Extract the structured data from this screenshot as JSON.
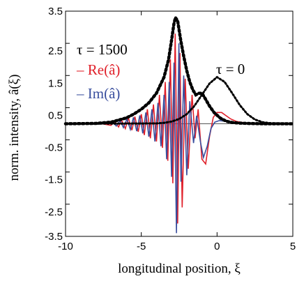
{
  "chart_data": {
    "type": "line",
    "xlabel": "longitudinal position, ξ",
    "ylabel": "norm. intensity, â(ξ)",
    "xlim": [
      -10,
      5
    ],
    "ylim": [
      -3.5,
      3.5
    ],
    "x_ticks": [
      "-10",
      "-5",
      "0",
      "5"
    ],
    "y_ticks": [
      "3.5",
      "2.5",
      "1.5",
      "0.5",
      "-0.5",
      "-1.5",
      "-2.5",
      "-3.5"
    ],
    "grid": false,
    "annotations": {
      "tau_late": "τ = 1500",
      "tau_zero": "τ = 0",
      "legend_re": "– Re(â)",
      "legend_im": "– Im(â)"
    },
    "series": [
      {
        "name": "Re(â)",
        "color": "#e0202a",
        "style": "solid",
        "x": [
          -10,
          -7.6,
          -7.0,
          -6.75,
          -6.5,
          -6.3,
          -6.05,
          -5.85,
          -5.62,
          -5.42,
          -5.2,
          -5.0,
          -4.8,
          -4.6,
          -4.4,
          -4.2,
          -4.0,
          -3.8,
          -3.6,
          -3.42,
          -3.25,
          -3.08,
          -2.92,
          -2.76,
          -2.6,
          -2.45,
          -2.3,
          -2.1,
          -1.9,
          -1.65,
          -1.45,
          -1.25,
          -1.0,
          -0.75,
          -0.5,
          -0.25,
          0.0,
          0.3,
          0.6,
          0.9,
          1.3,
          1.8,
          2.5,
          3.5,
          5
        ],
        "y": [
          0,
          0,
          -0.05,
          0.07,
          -0.1,
          0.12,
          -0.15,
          0.18,
          -0.2,
          0.22,
          -0.25,
          0.3,
          -0.35,
          0.45,
          -0.45,
          0.6,
          -0.55,
          0.9,
          -0.75,
          1.3,
          -1.15,
          2.0,
          -1.85,
          2.8,
          -3.1,
          2.2,
          -2.6,
          1.4,
          -1.4,
          0.9,
          -0.45,
          0.45,
          -1.1,
          -1.25,
          -0.4,
          0.2,
          0.35,
          0.35,
          0.25,
          0.15,
          0.07,
          0.03,
          0.01,
          0,
          0
        ]
      },
      {
        "name": "Im(â)",
        "color": "#3a4f9e",
        "style": "solid",
        "x": [
          -10,
          -7.6,
          -6.9,
          -6.65,
          -6.4,
          -6.18,
          -5.95,
          -5.72,
          -5.52,
          -5.3,
          -5.1,
          -4.9,
          -4.7,
          -4.5,
          -4.3,
          -4.1,
          -3.9,
          -3.7,
          -3.5,
          -3.33,
          -3.16,
          -3.0,
          -2.84,
          -2.68,
          -2.52,
          -2.38,
          -2.2,
          -2.0,
          -1.8,
          -1.55,
          -1.35,
          -1.1,
          -0.9,
          -0.65,
          -0.4,
          -0.15,
          0.15,
          0.5,
          0.9,
          1.4,
          2.0,
          3.0,
          5
        ],
        "y": [
          0,
          0,
          0.05,
          -0.07,
          0.1,
          -0.12,
          0.15,
          -0.18,
          0.2,
          -0.23,
          0.26,
          -0.3,
          0.35,
          -0.4,
          0.45,
          -0.55,
          0.65,
          -0.7,
          0.9,
          -1.1,
          1.3,
          -1.65,
          1.9,
          -3.4,
          2.5,
          -1.8,
          1.5,
          -1.6,
          0.7,
          -0.6,
          0.25,
          -0.55,
          -1.05,
          -0.7,
          -0.15,
          0.05,
          0.1,
          0.08,
          0.05,
          0.02,
          0.01,
          0,
          0
        ]
      },
      {
        "name": "|â| τ = 1500 envelope",
        "color": "#000000",
        "style": "dotted",
        "x": [
          -10,
          -8.0,
          -7.0,
          -6.0,
          -5.5,
          -5.0,
          -4.5,
          -4.0,
          -3.5,
          -3.2,
          -3.0,
          -2.85,
          -2.75,
          -2.6,
          -2.4,
          -2.2,
          -2.0,
          -1.8,
          -1.6,
          -1.4,
          -1.2,
          -1.0,
          -0.8,
          -0.5,
          -0.2,
          0.2,
          0.6,
          1.0,
          1.5,
          2.0,
          3.0,
          5
        ],
        "y": [
          0,
          0.01,
          0.05,
          0.18,
          0.3,
          0.45,
          0.65,
          0.95,
          1.45,
          2.0,
          2.6,
          3.1,
          3.3,
          3.2,
          2.6,
          2.1,
          1.65,
          1.3,
          1.05,
          0.9,
          0.95,
          0.95,
          0.8,
          0.55,
          0.35,
          0.18,
          0.08,
          0.04,
          0.02,
          0.01,
          0,
          0
        ]
      },
      {
        "name": "|â| τ = 0",
        "color": "#000000",
        "style": "dotted",
        "x": [
          -10,
          -4.0,
          -3.5,
          -3.0,
          -2.5,
          -2.0,
          -1.5,
          -1.0,
          -0.5,
          0.0,
          0.5,
          1.0,
          1.5,
          2.0,
          2.5,
          3.0,
          3.5,
          4.0,
          5
        ],
        "y": [
          0,
          0.01,
          0.03,
          0.07,
          0.15,
          0.3,
          0.55,
          0.9,
          1.25,
          1.45,
          1.3,
          0.95,
          0.58,
          0.3,
          0.13,
          0.05,
          0.02,
          0.01,
          0
        ]
      }
    ]
  }
}
